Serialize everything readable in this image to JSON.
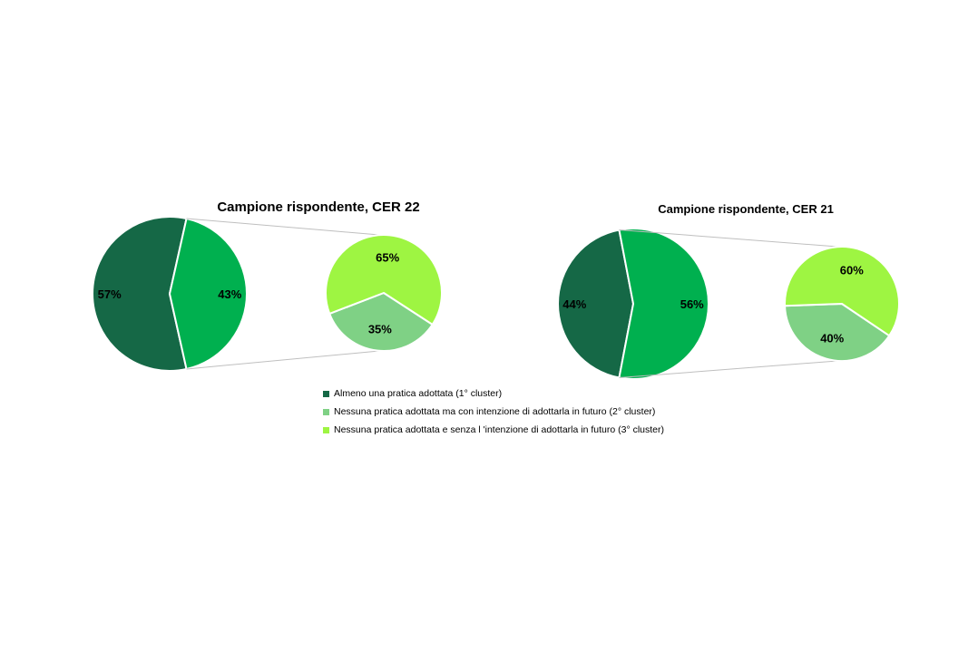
{
  "chart_data": [
    {
      "type": "pie",
      "title": "Campione rispondente, CER 22",
      "main_pie": {
        "slices": [
          {
            "label": "57%",
            "value": 57,
            "color": "#156846"
          },
          {
            "label": "43%",
            "value": 43,
            "color": "#00B04F"
          }
        ]
      },
      "secondary_pie": {
        "slices": [
          {
            "label": "35%",
            "value": 35,
            "color": "#7FD185"
          },
          {
            "label": "65%",
            "value": 65,
            "color": "#9EF542"
          }
        ]
      }
    },
    {
      "type": "pie",
      "title": "Campione rispondente, CER 21",
      "main_pie": {
        "slices": [
          {
            "label": "44%",
            "value": 44,
            "color": "#156846"
          },
          {
            "label": "56%",
            "value": 56,
            "color": "#00B04F"
          }
        ]
      },
      "secondary_pie": {
        "slices": [
          {
            "label": "40%",
            "value": 40,
            "color": "#7FD185"
          },
          {
            "label": "60%",
            "value": 60,
            "color": "#9EF542"
          }
        ]
      }
    }
  ],
  "legend": {
    "items": [
      {
        "label": "Almeno una pratica adottata (1° cluster)",
        "color": "#156846"
      },
      {
        "label": "Nessuna pratica adottata ma con intenzione di adottarla in futuro (2° cluster)",
        "color": "#7FD185"
      },
      {
        "label": "Nessuna pratica adottata e senza l 'intenzione di adottarla in futuro (3° cluster)",
        "color": "#9EF542"
      }
    ]
  }
}
